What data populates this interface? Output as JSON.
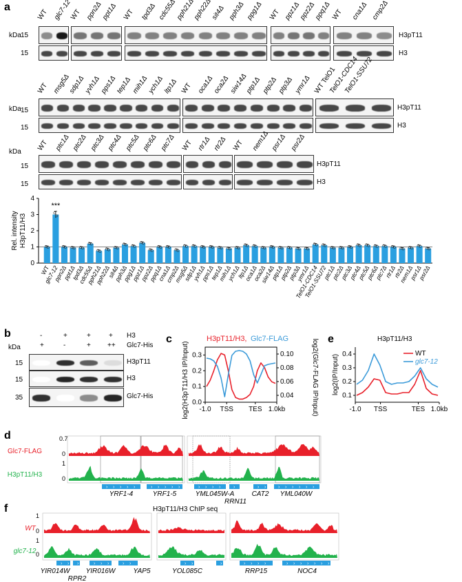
{
  "panel_a": {
    "label": "a",
    "kda": "kDa",
    "mw15": "15",
    "h3pt11": "H3pT11",
    "h3": "H3",
    "row1": [
      "WT",
      "glc7-12",
      "WT",
      "ppn2Δ",
      "ppt1Δ",
      "WT",
      "tpd3Δ",
      "cdc55Δ",
      "pph21Δ",
      "pph22Δ",
      "sit4Δ",
      "pph3Δ",
      "ppg1Δ",
      "WT",
      "ppz1Δ",
      "ppz2Δ",
      "ppq1Δ",
      "WT",
      "cna1Δ",
      "cmp2Δ"
    ],
    "row2": [
      "WT",
      "msg5Δ",
      "sdp1Δ",
      "yvh1Δ",
      "pps1Δ",
      "tep1Δ",
      "mih1Δ",
      "ych1Δ",
      "ltp1Δ",
      "WT",
      "oca1Δ",
      "oca2Δ",
      "siw14Δ",
      "ptp1Δ",
      "ptp2Δ",
      "ptp3Δ",
      "ymr1Δ",
      "WT TelO1",
      "TelO1-CDC14",
      "TelO1-SSU72"
    ],
    "row3": [
      "WT",
      "ptc1Δ",
      "ptc2Δ",
      "ptc3Δ",
      "ptc4Δ",
      "ptc5Δ",
      "ptc6Δ",
      "ptc7Δ",
      "WT",
      "rtr1Δ",
      "rtr2Δ",
      "WT",
      "nem1Δ",
      "psr1Δ",
      "psr2Δ"
    ],
    "bar_ylabel1": "Rel. intensity",
    "bar_ylabel2": "H3pT11/H3",
    "significance": "***"
  },
  "chart_data": [
    {
      "type": "bar",
      "categories": [
        "WT",
        "glc7-12",
        "ppn2Δ",
        "ppt1Δ",
        "tpd3Δ",
        "cdc55Δ",
        "pph21Δ",
        "pph22Δ",
        "sit4Δ",
        "pph3Δ",
        "ppg1Δ",
        "ppz1Δ",
        "ppz2Δ",
        "ppq1Δ",
        "cna1Δ",
        "cmp2Δ",
        "msg5Δ",
        "sdp1Δ",
        "yvh1Δ",
        "pps1Δ",
        "tep1Δ",
        "mih1Δ",
        "ych1Δ",
        "ltp1Δ",
        "oca1Δ",
        "oca2Δ",
        "siw14Δ",
        "ptp1Δ",
        "ptp2Δ",
        "ptp3Δ",
        "ymr1Δ",
        "TelO1-CDC14",
        "TelO1-SSU72",
        "ptc1Δ",
        "ptc2Δ",
        "ptc3Δ",
        "ptc4Δ",
        "ptc5Δ",
        "ptc6Δ",
        "ptc7Δ",
        "rtr1Δ",
        "rtr2Δ",
        "nem1Δ",
        "psr1Δ",
        "psr2Δ"
      ],
      "values": [
        1.0,
        3.0,
        1.0,
        0.95,
        0.95,
        1.2,
        0.75,
        0.85,
        0.95,
        1.15,
        1.05,
        1.25,
        0.8,
        1.0,
        1.0,
        0.8,
        1.05,
        1.05,
        1.0,
        1.0,
        0.95,
        0.9,
        0.95,
        1.1,
        1.05,
        0.95,
        1.0,
        0.95,
        0.95,
        0.9,
        0.9,
        1.15,
        1.1,
        0.95,
        0.95,
        1.0,
        1.1,
        1.1,
        1.05,
        1.05,
        1.0,
        0.9,
        0.95,
        1.05,
        0.9
      ],
      "ylabel": "Rel. intensity H3pT11/H3",
      "yticks": [
        "0",
        "1",
        "2",
        "3",
        "4"
      ],
      "ylim": [
        0,
        4
      ]
    },
    {
      "type": "line",
      "x_ticks": [
        "-1.0",
        "TSS",
        "TES",
        "1.0kb"
      ],
      "series": [
        {
          "name": "H3pT11/H3",
          "color": "#e8202a",
          "values": [
            0.1,
            0.14,
            0.2,
            0.27,
            0.31,
            0.3,
            0.2,
            0.08,
            0.03,
            0.02,
            0.02,
            0.03,
            0.05,
            0.1,
            0.2,
            0.25,
            0.22,
            0.16,
            0.13,
            0.12
          ]
        },
        {
          "name": "Glc7-FLAG",
          "color": "#3a9ad9",
          "values": [
            0.094,
            0.093,
            0.09,
            0.082,
            0.065,
            0.038,
            0.07,
            0.098,
            0.104,
            0.105,
            0.104,
            0.1,
            0.09,
            0.07,
            0.058,
            0.07,
            0.083,
            0.085,
            0.086,
            0.087
          ]
        }
      ],
      "yticks_left": [
        "0.0",
        "0.1",
        "0.2",
        "0.3"
      ],
      "yticks_right": [
        "0.04",
        "0.06",
        "0.08",
        "0.10"
      ],
      "ylim_left": [
        0,
        0.35
      ],
      "ylim_right": [
        0.03,
        0.11
      ]
    },
    {
      "type": "line",
      "title": "H3pT11/H3",
      "x_ticks": [
        "-1.0",
        "TSS",
        "TES",
        "1.0kb"
      ],
      "series": [
        {
          "name": "WT",
          "color": "#e8202a",
          "values": [
            0.1,
            0.12,
            0.16,
            0.22,
            0.21,
            0.12,
            0.11,
            0.11,
            0.12,
            0.12,
            0.18,
            0.28,
            0.15,
            0.11,
            0.1
          ]
        },
        {
          "name": "glc7-12",
          "color": "#3a9ad9",
          "values": [
            0.18,
            0.21,
            0.28,
            0.4,
            0.32,
            0.2,
            0.18,
            0.19,
            0.19,
            0.2,
            0.24,
            0.3,
            0.22,
            0.18,
            0.16
          ]
        }
      ],
      "yticks": [
        "0.1",
        "0.2",
        "0.3",
        "0.4"
      ],
      "ylim": [
        0.05,
        0.45
      ]
    }
  ],
  "panel_b": {
    "label": "b",
    "kda": "kDa",
    "h3_label": "H3",
    "glc7_label": "Glc7-His",
    "h3_signs": [
      "-",
      "+",
      "+",
      "+"
    ],
    "glc7_signs": [
      "+",
      "-",
      "+",
      "++"
    ],
    "mw": [
      "15",
      "15",
      "35"
    ],
    "bands": [
      "H3pT11",
      "H3",
      "Glc7-His"
    ]
  },
  "panel_c": {
    "label": "c",
    "legend_red": "H3pT11/H3,",
    "legend_blue": "Glc7-FLAG",
    "ylabel_left": "log2(H3pT11/H3 IP/Input)",
    "ylabel_right": "log2(Glc7-FLAG IP/Input)"
  },
  "panel_e": {
    "label": "e",
    "ylabel": "log2(IP/Input)",
    "legend": [
      "WT",
      "glc7-12"
    ]
  },
  "panel_d": {
    "label": "d",
    "track1": "Glc7-FLAG",
    "track2": "H3pT11/H3",
    "scale1": "0.7",
    "scale2": "1",
    "zero": "0",
    "genes_top": [
      "YRF1-4",
      "YRF1-5",
      "YML045W-A",
      "CAT2",
      "YML040W"
    ],
    "genes_bottom": [
      "RRN11"
    ]
  },
  "panel_f": {
    "label": "f",
    "title": "H3pT11/H3  ChIP seq",
    "track1": "WT",
    "track2": "glc7-12",
    "scale": "1",
    "zero": "0",
    "genes_top": [
      "YIR014W",
      "YIR016W",
      "YAP5",
      "YOL085C",
      "RRP15",
      "NOC4"
    ],
    "genes_bottom": [
      "RPR2"
    ]
  },
  "colors": {
    "bar": "#2a9fe0",
    "red": "#e8202a",
    "green": "#22b24c",
    "gene": "#2a9fe0"
  }
}
